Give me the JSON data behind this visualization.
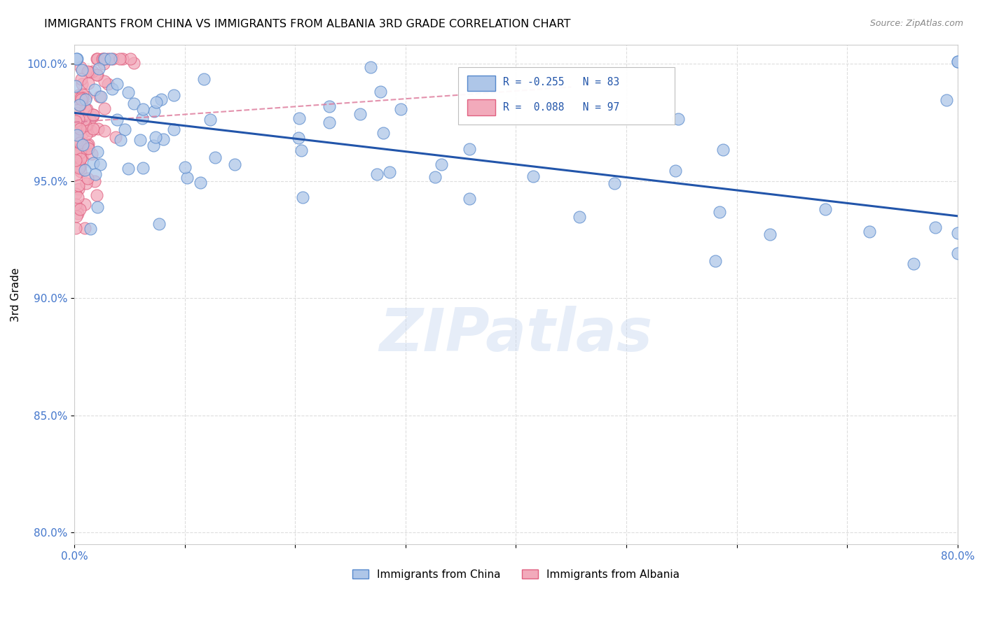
{
  "title": "IMMIGRANTS FROM CHINA VS IMMIGRANTS FROM ALBANIA 3RD GRADE CORRELATION CHART",
  "source": "Source: ZipAtlas.com",
  "ylabel": "3rd Grade",
  "xmin": 0.0,
  "xmax": 0.8,
  "ymin": 0.795,
  "ymax": 1.008,
  "ytick_positions": [
    1.0,
    0.95,
    0.9,
    0.85,
    0.8
  ],
  "ytick_labels": [
    "100.0%",
    "95.0%",
    "90.0%",
    "85.0%",
    "80.0%"
  ],
  "xtick_positions": [
    0.0,
    0.1,
    0.2,
    0.3,
    0.4,
    0.5,
    0.6,
    0.7,
    0.8
  ],
  "xtick_labels": [
    "0.0%",
    "",
    "",
    "",
    "",
    "",
    "",
    "",
    "80.0%"
  ],
  "grid_color": "#dddddd",
  "china_color": "#aec6e8",
  "albania_color": "#f2aabb",
  "china_edge": "#5588cc",
  "albania_edge": "#e06080",
  "china_line_color": "#2255aa",
  "albania_line_color": "#dd7799",
  "watermark": "ZIPatlas",
  "china_line_x0": 0.0,
  "china_line_y0": 0.979,
  "china_line_x1": 0.8,
  "china_line_y1": 0.935,
  "albania_line_x0": 0.0,
  "albania_line_y0": 0.975,
  "albania_line_x1": 0.45,
  "albania_line_y1": 0.99
}
